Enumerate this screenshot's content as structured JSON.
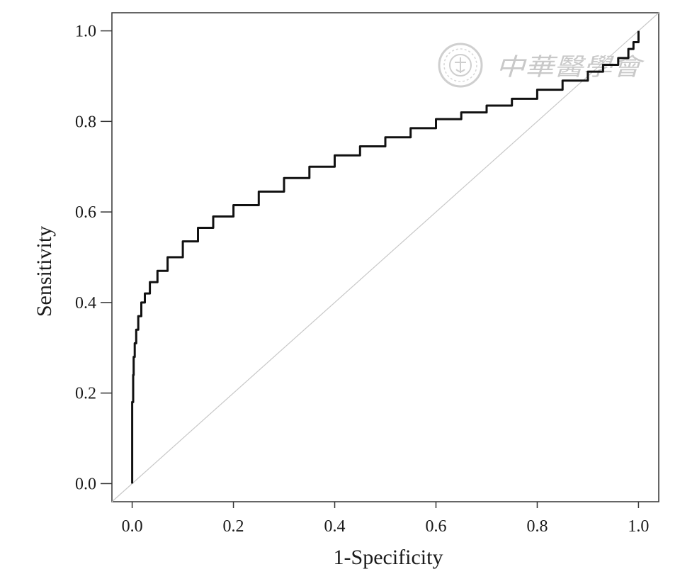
{
  "chart_data": {
    "type": "line",
    "title": "",
    "xlabel": "1-Specificity",
    "ylabel": "Sensitivity",
    "xlim": [
      -0.04,
      1.04
    ],
    "ylim": [
      -0.04,
      1.04
    ],
    "xticks": [
      0.0,
      0.2,
      0.4,
      0.6,
      0.8,
      1.0
    ],
    "yticks": [
      0.0,
      0.2,
      0.4,
      0.6,
      0.8,
      1.0
    ],
    "tick_labels": [
      "0.0",
      "0.2",
      "0.4",
      "0.6",
      "0.8",
      "1.0"
    ],
    "grid": false,
    "legend": "none",
    "reference_line": {
      "x": [
        0,
        1
      ],
      "y": [
        0,
        1
      ],
      "color": "#c8c8c8"
    },
    "series": [
      {
        "color": "#111111",
        "x": [
          0.0,
          0.0,
          0.002,
          0.003,
          0.005,
          0.008,
          0.012,
          0.018,
          0.025,
          0.035,
          0.05,
          0.07,
          0.1,
          0.13,
          0.16,
          0.2,
          0.25,
          0.3,
          0.35,
          0.4,
          0.45,
          0.5,
          0.55,
          0.6,
          0.65,
          0.7,
          0.75,
          0.8,
          0.85,
          0.9,
          0.93,
          0.96,
          0.98,
          0.99,
          1.0
        ],
        "y": [
          0.0,
          0.18,
          0.24,
          0.28,
          0.31,
          0.34,
          0.37,
          0.4,
          0.42,
          0.445,
          0.47,
          0.5,
          0.535,
          0.565,
          0.59,
          0.615,
          0.645,
          0.675,
          0.7,
          0.725,
          0.745,
          0.765,
          0.785,
          0.805,
          0.82,
          0.835,
          0.85,
          0.87,
          0.89,
          0.91,
          0.925,
          0.94,
          0.96,
          0.975,
          1.0
        ]
      }
    ]
  },
  "watermark": {
    "text": "中華醫學會",
    "color": "#c9c9c9"
  }
}
